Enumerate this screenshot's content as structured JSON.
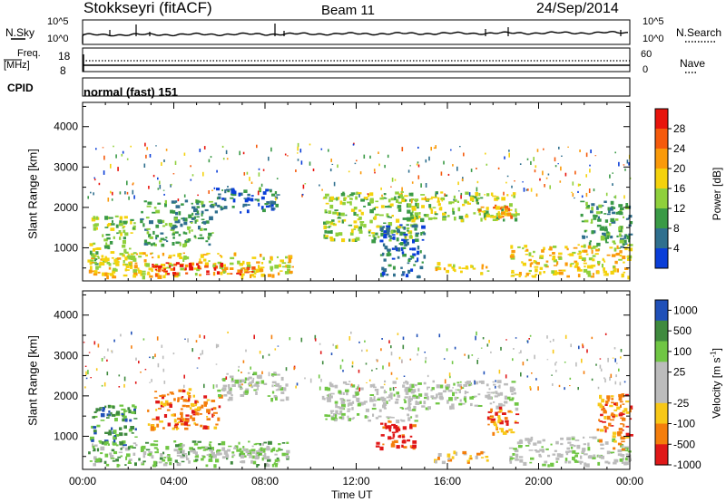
{
  "header": {
    "radar": "Stokkseyri (fitACF)",
    "beam": "Beam 11",
    "date": "24/Sep/2014"
  },
  "top_panel": {
    "left_label": "N.Sky",
    "right_label": "N.Search",
    "left_ticks": [
      "10^5",
      "10^0"
    ],
    "right_ticks": [
      "10^5",
      "10^0"
    ]
  },
  "freq_panel": {
    "left_label_1": "Freq.",
    "left_label_2": "[MHz]",
    "left_ticks": [
      "18",
      "8"
    ],
    "right_ticks": [
      "60",
      "0"
    ],
    "right_label": "Nave",
    "cpid_label": "CPID",
    "cpid_value": "normal (fast) 151"
  },
  "chart_data": [
    {
      "type": "heatmap",
      "name": "Power",
      "ylabel": "Slant Range [km]",
      "ylim": [
        180,
        4600
      ],
      "y_ticks": [
        1000,
        2000,
        3000,
        4000
      ],
      "x_range_hours": [
        0,
        24
      ],
      "colorbar_label": "Power [dB]",
      "colorbar_ticks": [
        "28",
        "24",
        "20",
        "16",
        "12",
        "8",
        "4"
      ],
      "colorbar_colors": [
        "#e8140c",
        "#f55a0c",
        "#fa9a0a",
        "#f4d20c",
        "#8fd03c",
        "#3a9a46",
        "#2f6f8e",
        "#0a3ed8"
      ],
      "regions": [
        {
          "t0": 0.2,
          "t1": 9.3,
          "r0": 300,
          "r1": 900,
          "level": 3
        },
        {
          "t0": 3.0,
          "t1": 7.5,
          "r0": 360,
          "r1": 650,
          "level": 0
        },
        {
          "t0": 0.3,
          "t1": 2.3,
          "r0": 600,
          "r1": 1800,
          "level": 4
        },
        {
          "t0": 2.5,
          "t1": 5.8,
          "r0": 1100,
          "r1": 2200,
          "level": 5
        },
        {
          "t0": 5.8,
          "t1": 8.5,
          "r0": 1900,
          "r1": 2500,
          "level": 6
        },
        {
          "t0": 10.5,
          "t1": 14.6,
          "r0": 1200,
          "r1": 2400,
          "level": 4
        },
        {
          "t0": 13.0,
          "t1": 15.0,
          "r0": 300,
          "r1": 1600,
          "level": 6
        },
        {
          "t0": 14.2,
          "t1": 19.0,
          "r0": 1700,
          "r1": 2400,
          "level": 4
        },
        {
          "t0": 15.4,
          "t1": 17.8,
          "r0": 380,
          "r1": 650,
          "level": 3
        },
        {
          "t0": 17.3,
          "t1": 19.0,
          "r0": 1750,
          "r1": 2100,
          "level": 2
        },
        {
          "t0": 18.7,
          "t1": 24.0,
          "r0": 300,
          "r1": 1100,
          "level": 3
        },
        {
          "t0": 21.8,
          "t1": 24.0,
          "r0": 1000,
          "r1": 2200,
          "level": 5
        }
      ]
    },
    {
      "type": "heatmap",
      "name": "Velocity",
      "ylabel": "Slant Range [km]",
      "xlabel": "Time UT",
      "ylim": [
        180,
        4600
      ],
      "y_ticks": [
        1000,
        2000,
        3000,
        4000
      ],
      "x_ticks": [
        "00:00",
        "04:00",
        "08:00",
        "12:00",
        "16:00",
        "20:00",
        "00:00"
      ],
      "x_range_hours": [
        0,
        24
      ],
      "colorbar_label": "Velocity [m s^-1]",
      "colorbar_ticks": [
        "1000",
        "500",
        "100",
        "25",
        "-25",
        "-100",
        "-500",
        "-1000"
      ],
      "colorbar_colors": [
        "#2050b8",
        "#3f8a3e",
        "#70c644",
        "#bcbcbc",
        "#bcbcbc",
        "#f8c818",
        "#f47e0c",
        "#e01818"
      ],
      "regions": [
        {
          "t0": 0.2,
          "t1": 9.0,
          "r0": 300,
          "r1": 900,
          "level": 2
        },
        {
          "t0": 2.5,
          "t1": 9.0,
          "r0": 500,
          "r1": 750,
          "level": 3
        },
        {
          "t0": 0.3,
          "t1": 2.3,
          "r0": 700,
          "r1": 1800,
          "level": 1
        },
        {
          "t0": 2.8,
          "t1": 6.0,
          "r0": 1200,
          "r1": 2200,
          "level": 6
        },
        {
          "t0": 5.8,
          "t1": 9.0,
          "r0": 1900,
          "r1": 2600,
          "level": 3
        },
        {
          "t0": 10.5,
          "t1": 14.6,
          "r0": 1400,
          "r1": 2400,
          "level": 3
        },
        {
          "t0": 12.8,
          "t1": 14.5,
          "r0": 700,
          "r1": 1400,
          "level": 7
        },
        {
          "t0": 14.2,
          "t1": 19.0,
          "r0": 1700,
          "r1": 2400,
          "level": 3
        },
        {
          "t0": 15.4,
          "t1": 17.8,
          "r0": 380,
          "r1": 650,
          "level": 5
        },
        {
          "t0": 17.5,
          "t1": 19.0,
          "r0": 1100,
          "r1": 1800,
          "level": 6
        },
        {
          "t0": 18.7,
          "t1": 24.0,
          "r0": 300,
          "r1": 1000,
          "level": 3
        },
        {
          "t0": 22.5,
          "t1": 24.0,
          "r0": 700,
          "r1": 2100,
          "level": 6
        }
      ]
    }
  ]
}
